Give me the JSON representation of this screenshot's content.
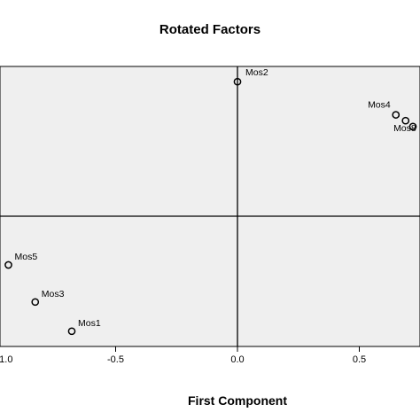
{
  "chart_data": {
    "type": "scatter",
    "title": "Rotated Factors",
    "xlabel": "First Component",
    "ylabel": "",
    "xlim": [
      -0.97,
      0.76
    ],
    "ylim": [
      -0.97,
      0.76
    ],
    "xticks": [
      -1.0,
      -0.5,
      0.0,
      0.5
    ],
    "xtick_labels": [
      "-1.0",
      "-0.5",
      "0.0",
      "0.5"
    ],
    "reference_lines": {
      "x": 0,
      "y": 0
    },
    "grid": false,
    "plot_background": "#efefef",
    "points": [
      {
        "label": "Mos2",
        "x": 0.0,
        "y": 0.69
      },
      {
        "label": "Mos4",
        "x": 0.65,
        "y": 0.52
      },
      {
        "label": "Mos8",
        "x": 0.69,
        "y": 0.49
      },
      {
        "label": "",
        "x": 0.72,
        "y": 0.46
      },
      {
        "label": "Mos5",
        "x": -0.94,
        "y": -0.25
      },
      {
        "label": "Mos3",
        "x": -0.83,
        "y": -0.44
      },
      {
        "label": "Mos1",
        "x": -0.68,
        "y": -0.59
      }
    ]
  }
}
